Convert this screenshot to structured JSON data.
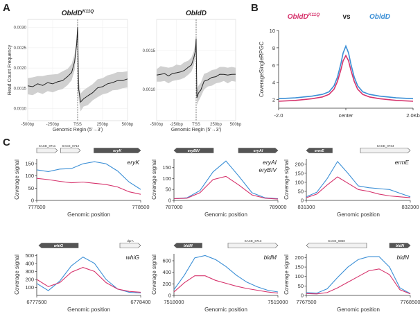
{
  "panel_labels": {
    "a": "A",
    "b": "B",
    "c": "C"
  },
  "chart_data": [
    {
      "id": "A1",
      "type": "area",
      "title": "ObldD",
      "title_sup": "K11Q",
      "xlabel": "Genomic Regin (5'→3')",
      "ylabel": "Read Count Frequency",
      "x_ticks": [
        "-500bp",
        "-250bp",
        "TSS",
        "250bp",
        "500bp"
      ],
      "y_ticks": [
        "0.0010",
        "0.0015",
        "0.0020",
        "0.0025",
        "0.0030"
      ],
      "xlim": [
        -500,
        500
      ],
      "ylim": [
        0.0007,
        0.0032
      ],
      "line_color": "#222222",
      "band_color": "#d0d0d0",
      "x": [
        -500,
        -450,
        -400,
        -350,
        -300,
        -250,
        -200,
        -150,
        -100,
        -60,
        -30,
        -10,
        0,
        10,
        30,
        60,
        100,
        150,
        200,
        250,
        300,
        350,
        400,
        450,
        500
      ],
      "y": [
        0.00155,
        0.00155,
        0.0016,
        0.00158,
        0.00163,
        0.00162,
        0.00165,
        0.0017,
        0.00178,
        0.0019,
        0.00215,
        0.0026,
        0.003,
        0.0015,
        0.00115,
        0.00125,
        0.0013,
        0.0014,
        0.0015,
        0.00155,
        0.0016,
        0.00165,
        0.00168,
        0.0017,
        0.00172
      ],
      "band": [
        0.0002,
        0.00022,
        0.0002,
        0.00022,
        0.0002,
        0.00022,
        0.0002,
        0.00022,
        0.0002,
        0.0002,
        0.0002,
        0.00015,
        0.0001,
        0.00025,
        0.00022,
        0.0002,
        0.00022,
        0.0002,
        0.00022,
        0.0002,
        0.00022,
        0.0002,
        0.00022,
        0.0002,
        0.0002
      ]
    },
    {
      "id": "A2",
      "type": "area",
      "title": "ObldD",
      "title_sup": "",
      "xlabel": "Genomic Regin (5'→3')",
      "ylabel": "",
      "x_ticks": [
        "-500bp",
        "-250bp",
        "TSS",
        "250bp",
        "500bp"
      ],
      "y_ticks": [
        "0.0010",
        "0.0015"
      ],
      "xlim": [
        -500,
        500
      ],
      "ylim": [
        0.0006,
        0.0019
      ],
      "line_color": "#222222",
      "band_color": "#d0d0d0",
      "x": [
        -500,
        -450,
        -400,
        -350,
        -300,
        -250,
        -200,
        -150,
        -100,
        -60,
        -30,
        -10,
        0,
        10,
        30,
        60,
        100,
        150,
        200,
        250,
        300,
        350,
        400,
        450,
        500
      ],
      "y": [
        0.00118,
        0.0012,
        0.0012,
        0.00118,
        0.0012,
        0.00122,
        0.00122,
        0.00125,
        0.00128,
        0.00132,
        0.0014,
        0.0015,
        0.00165,
        0.0009,
        0.00095,
        0.001,
        0.0011,
        0.00113,
        0.00115,
        0.00117,
        0.00119,
        0.0012,
        0.00118,
        0.0012,
        0.00119
      ],
      "band": [
        8e-05,
        0.0001,
        9e-05,
        0.0001,
        9e-05,
        0.0001,
        9e-05,
        0.0001,
        9e-05,
        9e-05,
        9e-05,
        8e-05,
        6e-05,
        0.0001,
        0.0001,
        9e-05,
        0.0001,
        9e-05,
        0.0001,
        9e-05,
        0.0001,
        9e-05,
        0.0001,
        9e-05,
        9e-05
      ]
    },
    {
      "id": "B",
      "type": "line",
      "title_left": "ObldD",
      "title_left_sup": "K11Q",
      "title_vs": "vs",
      "title_right": "ObldD",
      "ylabel": "CoverageSingleRPGC",
      "x_ticks": [
        "-2.0",
        "center",
        "2.0Kb"
      ],
      "y_ticks": [
        "2",
        "4",
        "6",
        "8",
        "10"
      ],
      "xlim": [
        -2000,
        2000
      ],
      "ylim": [
        1,
        10
      ],
      "x": [
        -2000,
        -1500,
        -1000,
        -700,
        -500,
        -350,
        -250,
        -150,
        -80,
        0,
        80,
        150,
        250,
        350,
        500,
        700,
        1000,
        1500,
        2000
      ],
      "series": [
        {
          "name": "ObldDK11Q",
          "color": "#d6336c",
          "values": [
            1.8,
            1.9,
            2.1,
            2.3,
            2.6,
            3.2,
            4.1,
            5.4,
            6.5,
            7.1,
            6.5,
            5.4,
            4.1,
            3.2,
            2.6,
            2.3,
            2.1,
            1.9,
            1.8
          ]
        },
        {
          "name": "ObldD",
          "color": "#3b8fd6",
          "values": [
            2.1,
            2.2,
            2.4,
            2.6,
            2.9,
            3.6,
            4.6,
            6.1,
            7.4,
            8.2,
            7.4,
            6.1,
            4.6,
            3.6,
            2.9,
            2.6,
            2.4,
            2.2,
            2.1
          ]
        }
      ]
    },
    {
      "id": "C1",
      "type": "line",
      "label": "eryK",
      "xlabel": "Genomic position",
      "ylabel": "Coverage signal",
      "x_ticks": [
        "777600",
        "778500"
      ],
      "y_ticks": [
        "0",
        "50",
        "100",
        "150"
      ],
      "xlim": [
        777600,
        778500
      ],
      "ylim": [
        0,
        170
      ],
      "genes": [
        {
          "name": "SACE_0711",
          "dir": "right",
          "filled": false,
          "start": 0.0,
          "end": 0.2
        },
        {
          "name": "SACE_0712",
          "dir": "right",
          "filled": false,
          "start": 0.23,
          "end": 0.42
        },
        {
          "name": "eryK",
          "dir": "right",
          "filled": true,
          "start": 0.55,
          "end": 1.0
        }
      ],
      "x": [
        777600,
        777700,
        777800,
        777900,
        778000,
        778100,
        778200,
        778300,
        778400,
        778500
      ],
      "series": [
        {
          "name": "ObldD",
          "color": "#3b8fd6",
          "values": [
            125,
            118,
            128,
            130,
            150,
            158,
            150,
            120,
            75,
            45
          ]
        },
        {
          "name": "ObldDK11Q",
          "color": "#d6336c",
          "values": [
            90,
            85,
            78,
            72,
            75,
            70,
            65,
            55,
            35,
            25
          ]
        }
      ]
    },
    {
      "id": "C2",
      "type": "line",
      "label": "eryAI",
      "label2": "eryBIV",
      "xlabel": "Genomic position",
      "ylabel": "Coverage signal",
      "x_ticks": [
        "787000",
        "789000"
      ],
      "y_ticks": [
        "0",
        "50",
        "100",
        "150"
      ],
      "xlim": [
        787000,
        789000
      ],
      "ylim": [
        0,
        190
      ],
      "genes": [
        {
          "name": "eryBIV",
          "dir": "left",
          "filled": true,
          "start": 0.0,
          "end": 0.38
        },
        {
          "name": "eryAI",
          "dir": "right",
          "filled": true,
          "start": 0.62,
          "end": 1.0
        }
      ],
      "x": [
        787000,
        787250,
        787500,
        787750,
        788000,
        788250,
        788500,
        788750,
        789000
      ],
      "series": [
        {
          "name": "ObldD",
          "color": "#3b8fd6",
          "values": [
            8,
            12,
            45,
            130,
            180,
            110,
            35,
            12,
            8
          ]
        },
        {
          "name": "ObldDK11Q",
          "color": "#d6336c",
          "values": [
            8,
            10,
            35,
            95,
            110,
            70,
            25,
            10,
            6
          ]
        }
      ]
    },
    {
      "id": "C3",
      "type": "line",
      "label": "ermE",
      "xlabel": "Genomic position",
      "ylabel": "Coverage signal",
      "x_ticks": [
        "831300",
        "832300"
      ],
      "y_ticks": [
        "0",
        "50",
        "100",
        "150",
        "200"
      ],
      "xlim": [
        831300,
        832300
      ],
      "ylim": [
        0,
        230
      ],
      "genes": [
        {
          "name": "ermE",
          "dir": "left",
          "filled": true,
          "start": 0.0,
          "end": 0.25
        },
        {
          "name": "SACE_0734",
          "dir": "right",
          "filled": false,
          "start": 0.52,
          "end": 1.0
        }
      ],
      "x": [
        831300,
        831400,
        831500,
        831600,
        831700,
        831800,
        831900,
        832000,
        832100,
        832200,
        832300
      ],
      "series": [
        {
          "name": "ObldD",
          "color": "#3b8fd6",
          "values": [
            20,
            45,
            120,
            215,
            150,
            80,
            70,
            65,
            60,
            40,
            20
          ]
        },
        {
          "name": "ObldDK11Q",
          "color": "#d6336c",
          "values": [
            15,
            35,
            85,
            130,
            95,
            60,
            50,
            35,
            25,
            20,
            15
          ]
        }
      ]
    },
    {
      "id": "C4",
      "type": "line",
      "label": "whiG",
      "xlabel": "Genomic position",
      "ylabel": "Coverage signal",
      "x_ticks": [
        "6777500",
        "6778400"
      ],
      "y_ticks": [
        "100",
        "200",
        "300",
        "400",
        "500"
      ],
      "xlim": [
        6777500,
        6778400
      ],
      "ylim": [
        0,
        520
      ],
      "genes": [
        {
          "name": "whiG",
          "dir": "left",
          "filled": true,
          "start": 0.02,
          "end": 0.4
        },
        {
          "name": "dprA",
          "dir": "right",
          "filled": false,
          "start": 0.8,
          "end": 1.0
        }
      ],
      "x": [
        6777500,
        6777600,
        6777700,
        6777800,
        6777900,
        6778000,
        6778100,
        6778200,
        6778300,
        6778400
      ],
      "series": [
        {
          "name": "ObldD",
          "color": "#3b8fd6",
          "values": [
            150,
            60,
            180,
            370,
            480,
            400,
            200,
            80,
            40,
            30
          ]
        },
        {
          "name": "ObldDK11Q",
          "color": "#d6336c",
          "values": [
            200,
            110,
            160,
            290,
            350,
            300,
            160,
            80,
            50,
            40
          ]
        }
      ]
    },
    {
      "id": "C5",
      "type": "line",
      "label": "bldM",
      "xlabel": "Genomic position",
      "ylabel": "Coverage signal",
      "x_ticks": [
        "7518000",
        "7519000"
      ],
      "y_ticks": [
        "0",
        "200",
        "400",
        "600"
      ],
      "xlim": [
        7518000,
        7519000
      ],
      "ylim": [
        0,
        720
      ],
      "genes": [
        {
          "name": "bldM",
          "dir": "left",
          "filled": true,
          "start": 0.0,
          "end": 0.27
        },
        {
          "name": "SACE_6713",
          "dir": "right",
          "filled": false,
          "start": 0.52,
          "end": 1.0
        }
      ],
      "x": [
        7518000,
        7518100,
        7518200,
        7518300,
        7518400,
        7518500,
        7518600,
        7518700,
        7518800,
        7518900,
        7519000
      ],
      "series": [
        {
          "name": "ObldD",
          "color": "#3b8fd6",
          "values": [
            100,
            350,
            650,
            690,
            620,
            500,
            350,
            230,
            150,
            90,
            60
          ]
        },
        {
          "name": "ObldDK11Q",
          "color": "#d6336c",
          "values": [
            60,
            220,
            340,
            340,
            260,
            210,
            160,
            120,
            90,
            60,
            40
          ]
        }
      ]
    },
    {
      "id": "C6",
      "type": "line",
      "label": "bldN",
      "xlabel": "Genomic position",
      "ylabel": "Coverage signal",
      "x_ticks": [
        "7767500",
        "7768500"
      ],
      "y_ticks": [
        "0",
        "50",
        "100",
        "150",
        "200"
      ],
      "xlim": [
        7767500,
        7768500
      ],
      "ylim": [
        0,
        220
      ],
      "genes": [
        {
          "name": "SACE_6950",
          "dir": "left",
          "filled": false,
          "start": 0.0,
          "end": 0.58
        },
        {
          "name": "bldN",
          "dir": "right",
          "filled": true,
          "start": 0.8,
          "end": 1.0
        }
      ],
      "x": [
        7767500,
        7767600,
        7767700,
        7767800,
        7767900,
        7768000,
        7768100,
        7768200,
        7768300,
        7768400,
        7768500
      ],
      "series": [
        {
          "name": "ObldD",
          "color": "#3b8fd6",
          "values": [
            15,
            12,
            35,
            95,
            150,
            190,
            205,
            205,
            150,
            40,
            10
          ]
        },
        {
          "name": "ObldDK11Q",
          "color": "#d6336c",
          "values": [
            10,
            8,
            15,
            40,
            70,
            100,
            130,
            140,
            110,
            30,
            8
          ]
        }
      ]
    }
  ]
}
